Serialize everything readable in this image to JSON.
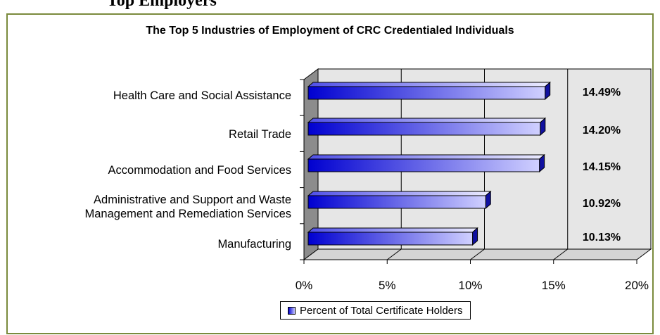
{
  "page": {
    "heading_fragment": "Top Employers"
  },
  "chart_data": {
    "type": "bar",
    "orientation": "horizontal",
    "title": "The Top 5 Industries of Employment of CRC Credentialed Individuals",
    "categories": [
      "Health Care and Social Assistance",
      "Retail Trade",
      "Accommodation and Food Services",
      "Administrative and Support and Waste Management and Remediation Services",
      "Manufacturing"
    ],
    "category_label_lines": [
      [
        "Health Care and Social Assistance"
      ],
      [
        "Retail Trade"
      ],
      [
        "Accommodation and Food Services"
      ],
      [
        "Administrative and Support and Waste",
        "Management and Remediation Services"
      ],
      [
        "Manufacturing"
      ]
    ],
    "series": [
      {
        "name": "Percent of Total Certificate Holders",
        "values": [
          14.49,
          14.2,
          14.15,
          10.92,
          10.13
        ]
      }
    ],
    "data_labels": [
      "14.49%",
      "14.20%",
      "14.15%",
      "10.92%",
      "10.13%"
    ],
    "x_ticks": [
      "0%",
      "5%",
      "10%",
      "15%",
      "20%"
    ],
    "xlim": [
      0,
      20
    ],
    "grid": true,
    "legend_position": "bottom",
    "colors": {
      "bar_dark": "#0000d0",
      "bar_light": "#d0d0ff",
      "plot_bg": "#e6e6e6",
      "frame": "#7a8a3c"
    }
  }
}
